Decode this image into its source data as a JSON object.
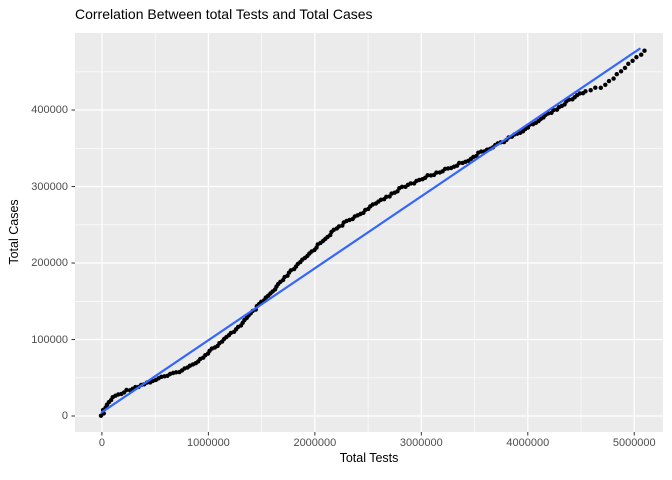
{
  "title": "Correlation Between total Tests and Total Cases",
  "x_axis": {
    "label": "Total Tests",
    "tick_values": [
      0,
      1000000,
      2000000,
      3000000,
      4000000,
      5000000
    ],
    "tick_labels": [
      "0",
      "1000000",
      "2000000",
      "3000000",
      "4000000",
      "5000000"
    ]
  },
  "y_axis": {
    "label": "Total Cases",
    "tick_values": [
      0,
      100000,
      200000,
      300000,
      400000
    ],
    "tick_labels": [
      "0",
      "100000",
      "200000",
      "300000",
      "400000"
    ]
  },
  "colors": {
    "outer_bg": "#ffffff",
    "panel_bg": "#ebebeb",
    "grid_major": "#ffffff",
    "grid_minor": "#ffffff",
    "tick_mark": "#333333",
    "tick_label": "#4d4d4d",
    "point": "#000000",
    "smooth_line": "#3366ff"
  },
  "chart_data": {
    "type": "scatter",
    "title": "Correlation Between total Tests and Total Cases",
    "xlabel": "Total Tests",
    "ylabel": "Total Cases",
    "xlim": [
      -253000,
      5270000
    ],
    "ylim": [
      -20900,
      500700
    ],
    "grid": "major+minor",
    "legend": "none",
    "series": [
      {
        "name": "observations",
        "type": "points",
        "color": "#000000",
        "points": [
          [
            0,
            0
          ],
          [
            20000,
            8000
          ],
          [
            60000,
            17000
          ],
          [
            100000,
            23500
          ],
          [
            160000,
            29000
          ],
          [
            230000,
            33000
          ],
          [
            290000,
            36500
          ],
          [
            370000,
            40500
          ],
          [
            450000,
            44500
          ],
          [
            540000,
            49500
          ],
          [
            640000,
            53500
          ],
          [
            730000,
            59000
          ],
          [
            820000,
            64000
          ],
          [
            880000,
            70500
          ],
          [
            950000,
            77000
          ],
          [
            1010000,
            85000
          ],
          [
            1090000,
            93000
          ],
          [
            1170000,
            102000
          ],
          [
            1240000,
            111000
          ],
          [
            1320000,
            121500
          ],
          [
            1390000,
            132000
          ],
          [
            1470000,
            144000
          ],
          [
            1540000,
            154000
          ],
          [
            1620000,
            164500
          ],
          [
            1690000,
            176500
          ],
          [
            1780000,
            189500
          ],
          [
            1860000,
            200000
          ],
          [
            1950000,
            212000
          ],
          [
            2030000,
            223500
          ],
          [
            2110000,
            234000
          ],
          [
            2200000,
            244500
          ],
          [
            2280000,
            252500
          ],
          [
            2370000,
            260000
          ],
          [
            2450000,
            266500
          ],
          [
            2540000,
            274500
          ],
          [
            2620000,
            282500
          ],
          [
            2710000,
            289000
          ],
          [
            2790000,
            296500
          ],
          [
            2880000,
            302000
          ],
          [
            2960000,
            307000
          ],
          [
            3040000,
            312500
          ],
          [
            3130000,
            316500
          ],
          [
            3210000,
            321500
          ],
          [
            3290000,
            325500
          ],
          [
            3370000,
            330500
          ],
          [
            3460000,
            336000
          ],
          [
            3530000,
            342500
          ],
          [
            3610000,
            347500
          ],
          [
            3690000,
            354000
          ],
          [
            3780000,
            359500
          ],
          [
            3860000,
            366000
          ],
          [
            3950000,
            372500
          ],
          [
            4030000,
            380500
          ],
          [
            4120000,
            388000
          ],
          [
            4200000,
            396000
          ],
          [
            4280000,
            402500
          ],
          [
            4370000,
            410500
          ],
          [
            4450000,
            418500
          ],
          [
            4540000,
            423500
          ],
          [
            4620000,
            427500
          ],
          [
            4710000,
            431500
          ],
          [
            4780000,
            439000
          ],
          [
            4860000,
            448500
          ],
          [
            4930000,
            457500
          ],
          [
            5000000,
            466500
          ],
          [
            5060000,
            473000
          ],
          [
            5100000,
            478500
          ]
        ]
      },
      {
        "name": "trend-line",
        "type": "line",
        "color": "#3366ff",
        "points": [
          [
            0,
            5000
          ],
          [
            5050000,
            480000
          ]
        ]
      }
    ]
  }
}
